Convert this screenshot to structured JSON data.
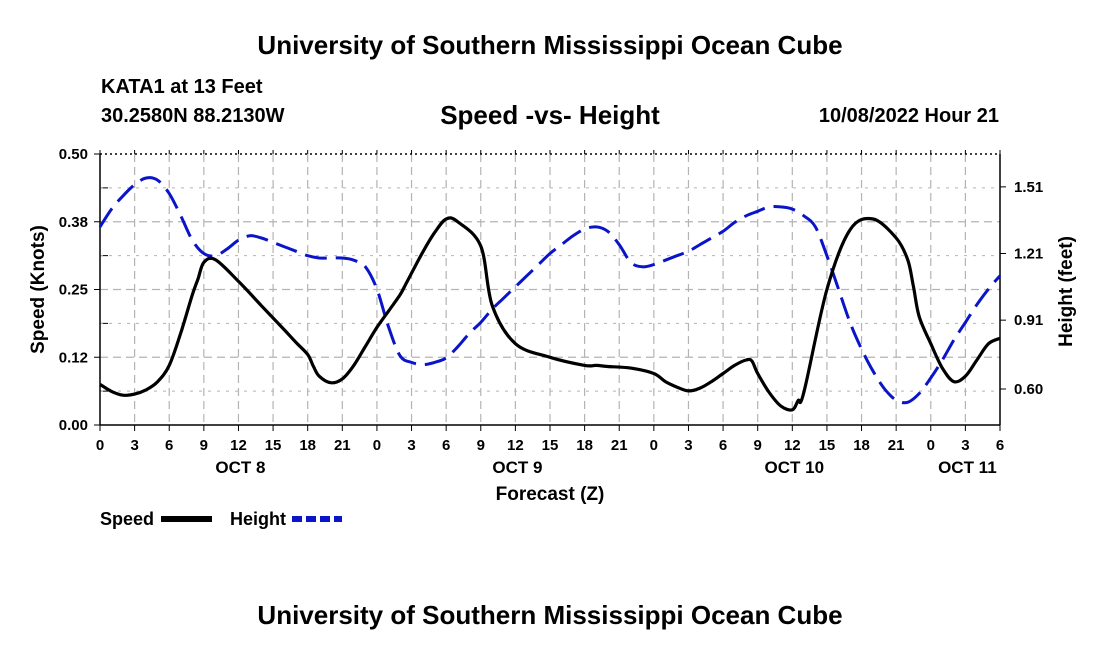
{
  "page": {
    "title_top": "University of Southern Mississippi Ocean Cube",
    "title_bottom": "University of Southern Mississippi Ocean Cube",
    "station": "KATA1 at 13 Feet",
    "coords": "30.2580N  88.2130W",
    "subtitle": "Speed -vs- Height",
    "datetime": "10/08/2022 Hour 21"
  },
  "colors": {
    "speed": "#000000",
    "height": "#0a14c8",
    "grid": "#b4b4b4"
  },
  "chart_data": {
    "type": "line",
    "title": "Speed -vs- Height",
    "xlabel": "Forecast (Z)",
    "ylabel_left": "Speed (Knots)",
    "ylabel_right": "Height (feet)",
    "x_range_hours": [
      0,
      78
    ],
    "x_ticks": [
      {
        "h": 0,
        "label": "0"
      },
      {
        "h": 3,
        "label": "3"
      },
      {
        "h": 6,
        "label": "6"
      },
      {
        "h": 9,
        "label": "9"
      },
      {
        "h": 12,
        "label": "12"
      },
      {
        "h": 15,
        "label": "15"
      },
      {
        "h": 18,
        "label": "18"
      },
      {
        "h": 21,
        "label": "21"
      },
      {
        "h": 24,
        "label": "0"
      },
      {
        "h": 27,
        "label": "3"
      },
      {
        "h": 30,
        "label": "6"
      },
      {
        "h": 33,
        "label": "9"
      },
      {
        "h": 36,
        "label": "12"
      },
      {
        "h": 39,
        "label": "15"
      },
      {
        "h": 42,
        "label": "18"
      },
      {
        "h": 45,
        "label": "21"
      },
      {
        "h": 48,
        "label": "0"
      },
      {
        "h": 51,
        "label": "3"
      },
      {
        "h": 54,
        "label": "6"
      },
      {
        "h": 57,
        "label": "9"
      },
      {
        "h": 60,
        "label": "12"
      },
      {
        "h": 63,
        "label": "15"
      },
      {
        "h": 66,
        "label": "18"
      },
      {
        "h": 69,
        "label": "21"
      },
      {
        "h": 72,
        "label": "0"
      },
      {
        "h": 75,
        "label": "3"
      },
      {
        "h": 78,
        "label": "6"
      }
    ],
    "date_labels": [
      {
        "h": 12,
        "label": "OCT 8"
      },
      {
        "h": 36,
        "label": "OCT 9"
      },
      {
        "h": 60,
        "label": "OCT 10"
      },
      {
        "h": 75,
        "label": "OCT 11"
      }
    ],
    "y_left": {
      "range": [
        0,
        0.5
      ],
      "ticks": [
        "0.00",
        "0.12",
        "0.25",
        "0.38",
        "0.50"
      ],
      "tick_values": [
        0,
        0.125,
        0.25,
        0.375,
        0.5
      ]
    },
    "y_right": {
      "range": [
        0.438,
        1.658
      ],
      "ticks": [
        "0.60",
        "0.91",
        "1.21",
        "1.51"
      ],
      "tick_values": [
        0.6,
        0.91,
        1.21,
        1.51
      ]
    },
    "series": [
      {
        "name": "Speed",
        "axis": "left",
        "style": "solid",
        "x": [
          0,
          1,
          2,
          3,
          4,
          5,
          6,
          7,
          8,
          8.5,
          9,
          10,
          12,
          14,
          16,
          17,
          18,
          18.5,
          19,
          20,
          21,
          22,
          23,
          24,
          25,
          26,
          26.5,
          27,
          28,
          29,
          30,
          31,
          33,
          34,
          36,
          39,
          42,
          43,
          44,
          46,
          48,
          49,
          50,
          51,
          52,
          53,
          54,
          55,
          56,
          56.5,
          57,
          58,
          59,
          60,
          60.5,
          61,
          63,
          65,
          67,
          69,
          70,
          70.5,
          71,
          72,
          73,
          74,
          75,
          76,
          77,
          78
        ],
        "values": [
          0.075,
          0.062,
          0.055,
          0.057,
          0.065,
          0.08,
          0.11,
          0.17,
          0.24,
          0.27,
          0.3,
          0.305,
          0.265,
          0.22,
          0.175,
          0.152,
          0.13,
          0.108,
          0.09,
          0.078,
          0.085,
          0.11,
          0.145,
          0.18,
          0.21,
          0.24,
          0.26,
          0.28,
          0.32,
          0.355,
          0.38,
          0.375,
          0.33,
          0.22,
          0.15,
          0.125,
          0.11,
          0.11,
          0.108,
          0.105,
          0.095,
          0.08,
          0.07,
          0.063,
          0.068,
          0.08,
          0.095,
          0.11,
          0.12,
          0.118,
          0.095,
          0.06,
          0.035,
          0.028,
          0.045,
          0.06,
          0.25,
          0.36,
          0.38,
          0.345,
          0.305,
          0.255,
          0.2,
          0.15,
          0.105,
          0.08,
          0.09,
          0.12,
          0.15,
          0.16
        ],
        "x_note": "",
        "points": []
      },
      {
        "name": "Height",
        "axis": "right",
        "style": "dashed",
        "x": [
          0,
          1,
          2,
          3,
          4,
          5,
          6,
          7,
          8,
          9,
          10,
          11,
          12,
          13,
          14,
          15,
          16,
          17,
          18,
          19,
          20,
          21,
          22,
          23,
          24,
          25,
          26,
          27,
          28,
          29,
          30,
          31,
          32,
          33,
          34,
          35,
          36,
          37,
          38,
          39,
          40,
          41,
          42,
          43,
          44,
          45,
          46,
          47,
          48,
          49,
          50,
          51,
          52,
          53,
          54,
          55,
          56,
          57,
          58,
          59,
          60,
          61,
          62,
          63,
          64,
          65,
          66,
          67,
          68,
          69,
          70,
          71,
          72,
          73,
          74,
          75,
          76,
          77,
          78
        ],
        "values": [
          1.33,
          1.41,
          1.47,
          1.52,
          1.55,
          1.54,
          1.48,
          1.38,
          1.27,
          1.21,
          1.2,
          1.23,
          1.27,
          1.29,
          1.28,
          1.26,
          1.24,
          1.22,
          1.2,
          1.19,
          1.19,
          1.19,
          1.18,
          1.15,
          1.05,
          0.88,
          0.75,
          0.72,
          0.71,
          0.72,
          0.74,
          0.79,
          0.85,
          0.9,
          0.96,
          1.01,
          1.06,
          1.11,
          1.16,
          1.21,
          1.25,
          1.29,
          1.32,
          1.33,
          1.31,
          1.25,
          1.17,
          1.15,
          1.16,
          1.18,
          1.2,
          1.22,
          1.25,
          1.28,
          1.31,
          1.35,
          1.38,
          1.4,
          1.42,
          1.42,
          1.41,
          1.38,
          1.33,
          1.2,
          1.05,
          0.9,
          0.78,
          0.68,
          0.6,
          0.55,
          0.54,
          0.58,
          0.65,
          0.73,
          0.82,
          0.9,
          0.98,
          1.05,
          1.11
        ],
        "x_note": "",
        "points": []
      }
    ],
    "legend": [
      {
        "label": "Speed",
        "style": "solid"
      },
      {
        "label": "Height",
        "style": "dashed"
      }
    ],
    "legend_position": "bottom-left",
    "grid": true
  }
}
